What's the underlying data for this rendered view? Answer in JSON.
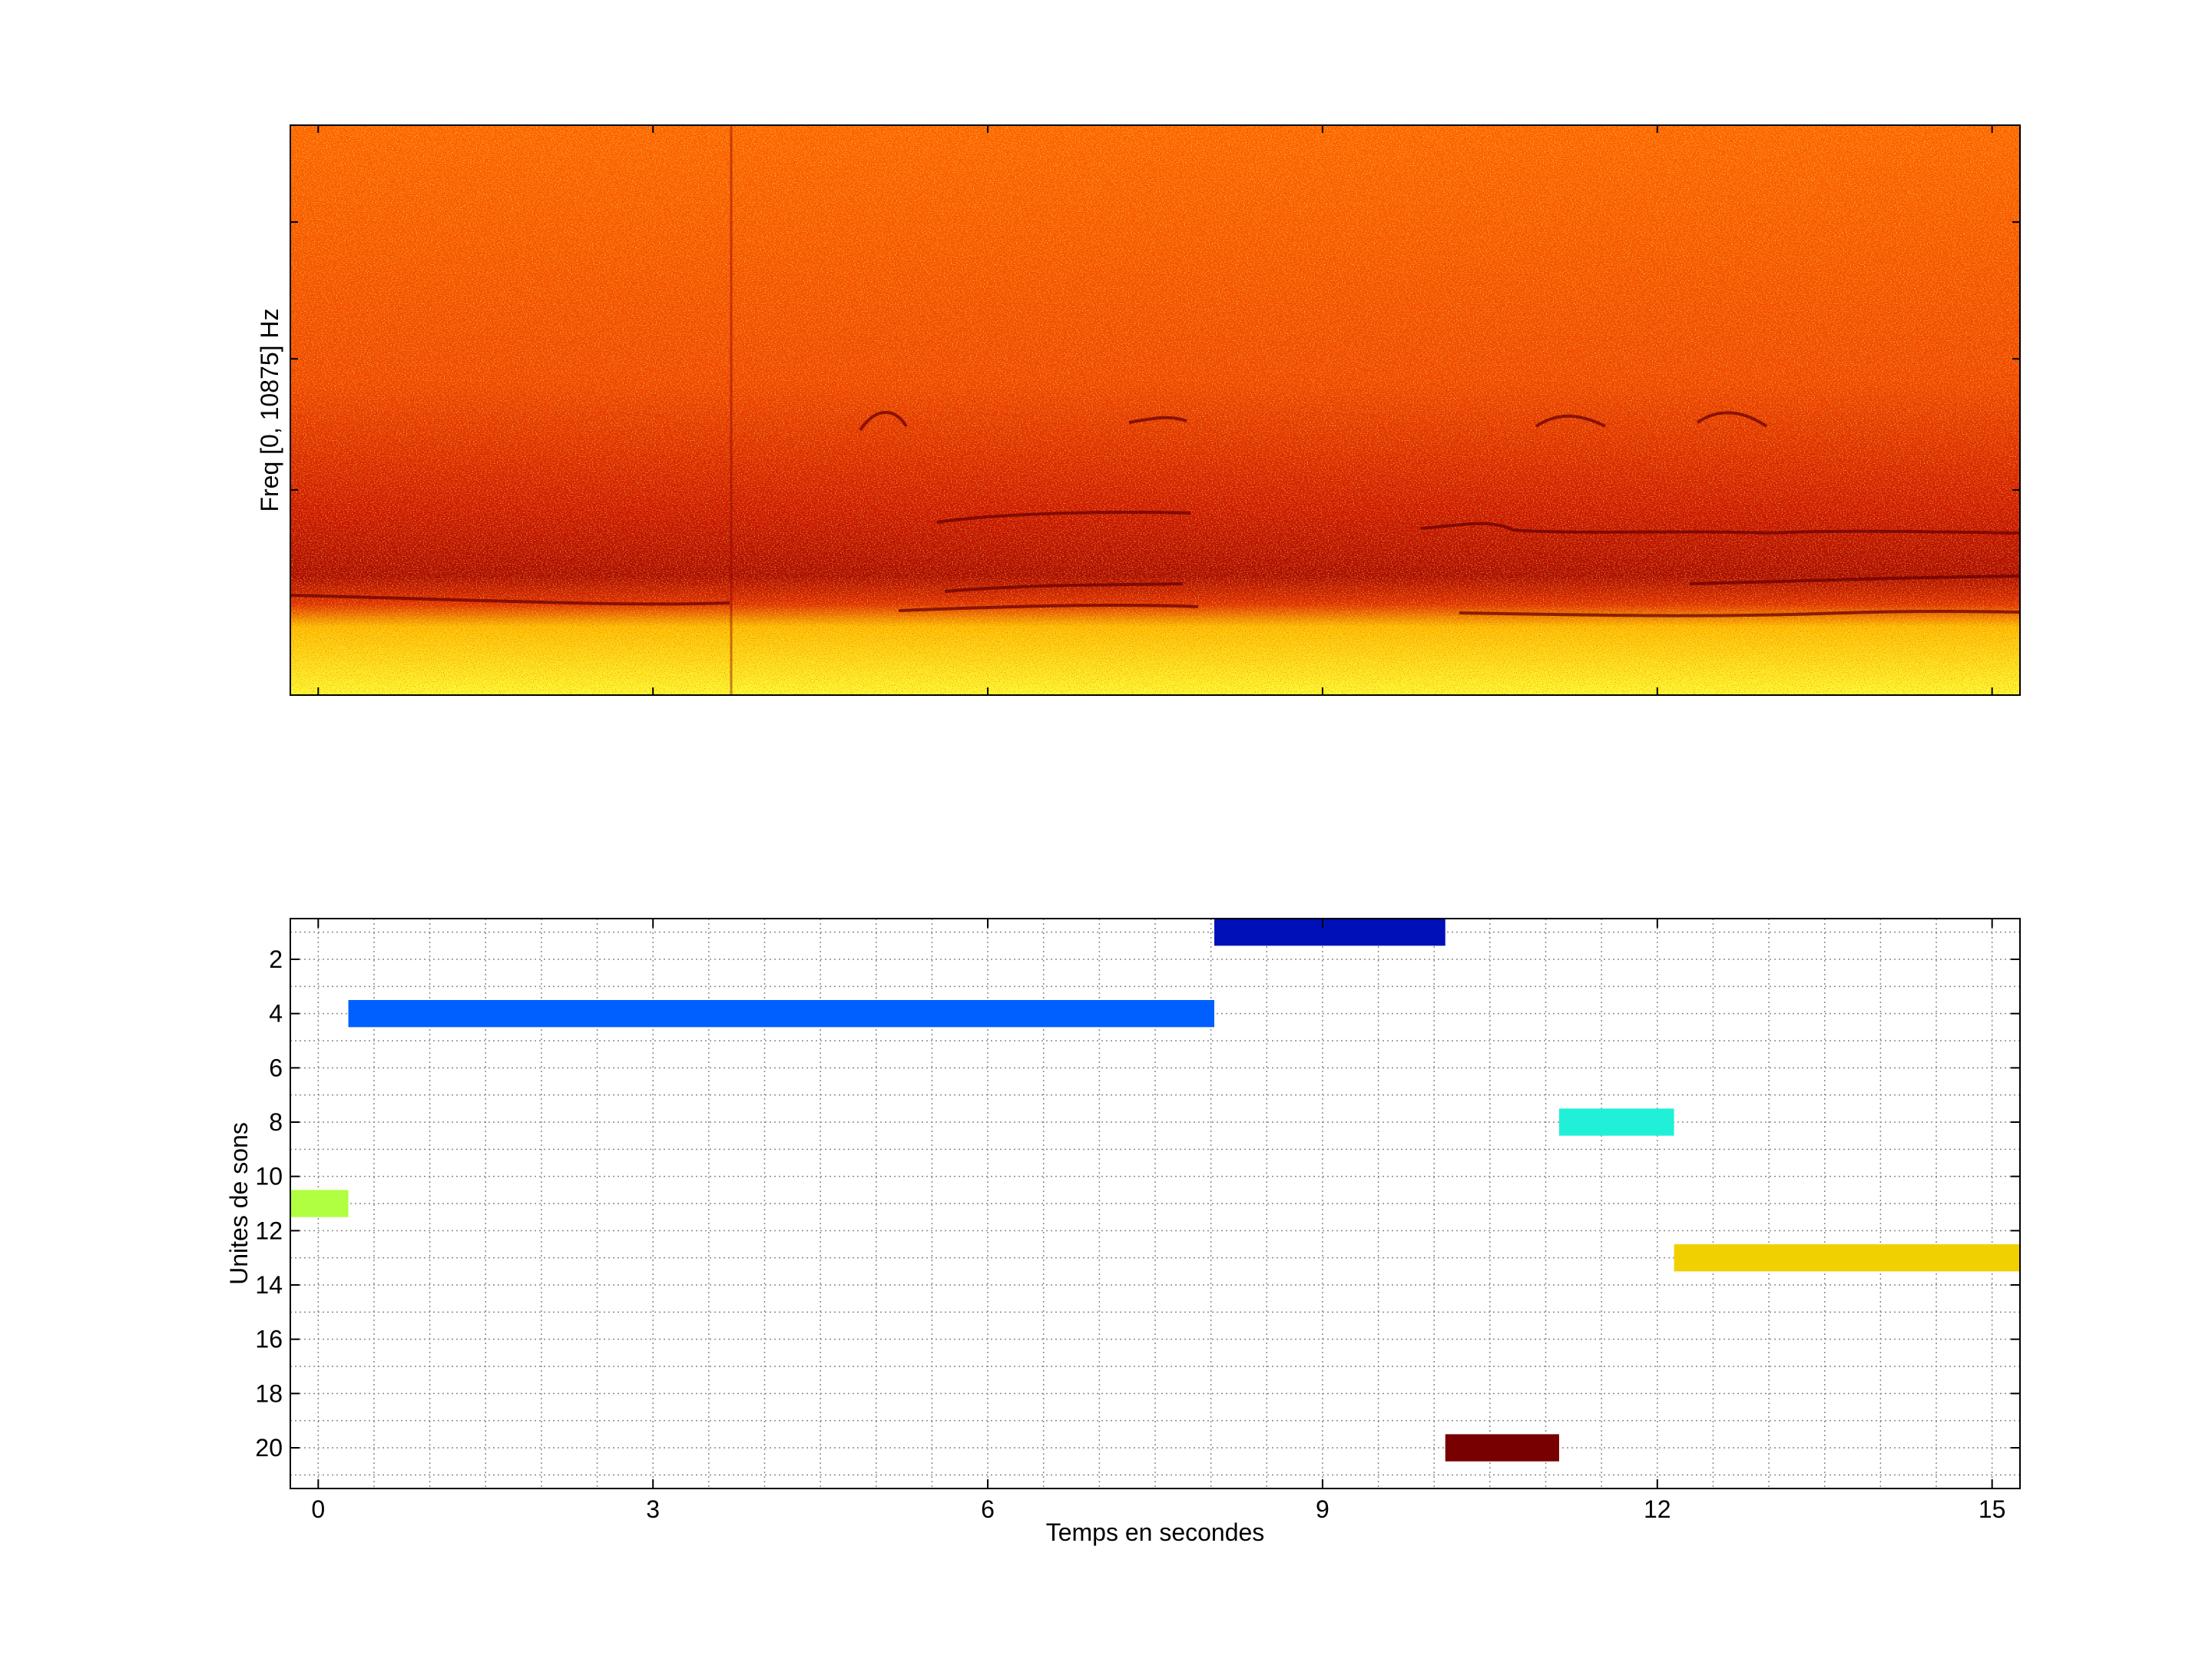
{
  "chart_data": [
    {
      "type": "heatmap",
      "title": "",
      "xlabel": "",
      "ylabel": "Freq [0, 10875] Hz",
      "xlim": [
        -0.25,
        15.25
      ],
      "colormap": "hot",
      "description_values": {
        "y_range_hz": [
          0,
          10875
        ]
      }
    },
    {
      "type": "bar",
      "orientation": "horizontal-segments",
      "title": "",
      "xlabel": "Temps en secondes",
      "ylabel": "Unites de sons",
      "xlim": [
        -0.25,
        15.25
      ],
      "ylim": [
        0.5,
        21.5
      ],
      "y_reversed": true,
      "grid": true,
      "x_ticks": [
        0,
        3,
        6,
        9,
        12,
        15
      ],
      "y_ticks": [
        2,
        4,
        6,
        8,
        10,
        12,
        14,
        16,
        18,
        20
      ],
      "segments": [
        {
          "unit": 1,
          "start": 8.03,
          "end": 10.1,
          "color": "#0010b8"
        },
        {
          "unit": 4,
          "start": 0.27,
          "end": 8.03,
          "color": "#0060ff"
        },
        {
          "unit": 8,
          "start": 11.12,
          "end": 12.15,
          "color": "#20f0d8"
        },
        {
          "unit": 11,
          "start": -0.25,
          "end": 0.27,
          "color": "#b0ff40"
        },
        {
          "unit": 13,
          "start": 12.15,
          "end": 15.25,
          "color": "#f0d000"
        },
        {
          "unit": 20,
          "start": 10.1,
          "end": 11.12,
          "color": "#780000"
        }
      ]
    }
  ]
}
